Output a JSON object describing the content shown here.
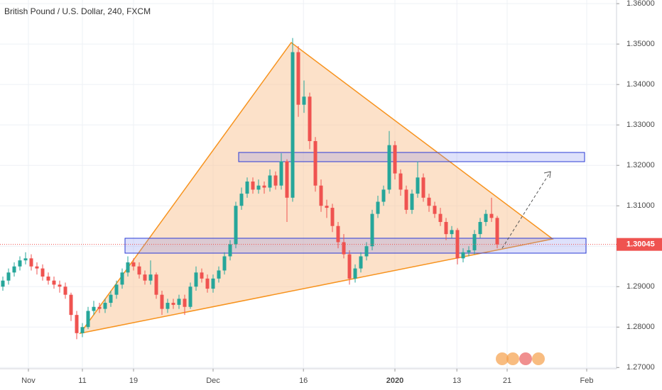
{
  "chart_data": {
    "type": "candlestick",
    "title": "British Pound / U.S. Dollar, 240, FXCM",
    "up_color": "#26a69a",
    "down_color": "#ef5350",
    "grid": true,
    "open": [
      1.29,
      1.2915,
      1.2935,
      1.295,
      1.2965,
      1.297,
      1.295,
      1.2945,
      1.2925,
      1.2915,
      1.2905,
      1.29,
      1.288,
      1.283,
      1.2785,
      1.28,
      1.284,
      1.285,
      1.2845,
      1.286,
      1.288,
      1.2905,
      1.2935,
      1.296,
      1.295,
      1.293,
      1.2915,
      1.293,
      1.288,
      1.2845,
      1.286,
      1.2855,
      1.287,
      1.285,
      1.29,
      1.2935,
      1.292,
      1.2895,
      1.292,
      1.294,
      1.2975,
      1.3005,
      1.31,
      1.313,
      1.316,
      1.314,
      1.315,
      1.3145,
      1.3175,
      1.315,
      1.321,
      1.312,
      1.348,
      1.335,
      1.337,
      1.326,
      1.315,
      1.31,
      1.3095,
      1.305,
      1.301,
      1.298,
      1.292,
      1.2945,
      1.2975,
      1.3,
      1.308,
      1.311,
      1.314,
      1.325,
      1.318,
      1.314,
      1.309,
      1.313,
      1.317,
      1.312,
      1.31,
      1.308,
      1.306,
      1.303,
      1.304,
      1.297,
      1.2985,
      1.299,
      1.303,
      1.306,
      1.308,
      1.307
    ],
    "high": [
      1.2925,
      1.2945,
      1.296,
      1.2975,
      1.2985,
      1.298,
      1.296,
      1.2955,
      1.2935,
      1.2925,
      1.2915,
      1.291,
      1.2885,
      1.284,
      1.281,
      1.285,
      1.2865,
      1.286,
      1.287,
      1.289,
      1.2915,
      1.2945,
      1.2975,
      1.297,
      1.296,
      1.294,
      1.2965,
      1.2935,
      1.289,
      1.287,
      1.287,
      1.288,
      1.288,
      1.291,
      1.295,
      1.2945,
      1.293,
      1.293,
      1.295,
      1.2985,
      1.3015,
      1.311,
      1.3145,
      1.317,
      1.317,
      1.3165,
      1.316,
      1.319,
      1.3185,
      1.323,
      1.3215,
      1.3515,
      1.3495,
      1.341,
      1.338,
      1.327,
      1.3165,
      1.3115,
      1.3105,
      1.306,
      1.303,
      1.299,
      1.2955,
      1.2985,
      1.301,
      1.309,
      1.3125,
      1.315,
      1.3285,
      1.326,
      1.319,
      1.315,
      1.314,
      1.321,
      1.318,
      1.313,
      1.311,
      1.3095,
      1.307,
      1.305,
      1.3045,
      1.2995,
      1.3,
      1.304,
      1.307,
      1.309,
      1.312,
      1.3075
    ],
    "low": [
      1.289,
      1.2905,
      1.2925,
      1.294,
      1.2955,
      1.294,
      1.293,
      1.2915,
      1.2905,
      1.2895,
      1.2885,
      1.287,
      1.2815,
      1.277,
      1.2775,
      1.2795,
      1.283,
      1.2835,
      1.2835,
      1.285,
      1.287,
      1.2895,
      1.2925,
      1.294,
      1.292,
      1.2905,
      1.2905,
      1.287,
      1.283,
      1.2835,
      1.2845,
      1.2845,
      1.283,
      1.2845,
      1.289,
      1.291,
      1.2885,
      1.2885,
      1.291,
      1.293,
      1.2965,
      1.2995,
      1.309,
      1.312,
      1.313,
      1.313,
      1.313,
      1.3135,
      1.314,
      1.314,
      1.306,
      1.311,
      1.332,
      1.333,
      1.324,
      1.3135,
      1.3085,
      1.307,
      1.3035,
      1.2995,
      1.297,
      1.2905,
      1.291,
      1.2935,
      1.2965,
      1.299,
      1.307,
      1.31,
      1.313,
      1.3165,
      1.3125,
      1.308,
      1.308,
      1.312,
      1.311,
      1.3085,
      1.307,
      1.305,
      1.3015,
      1.302,
      1.2955,
      1.296,
      1.2975,
      1.298,
      1.302,
      1.305,
      1.306,
      1.2995
    ],
    "close": [
      1.2915,
      1.2935,
      1.295,
      1.2965,
      1.297,
      1.295,
      1.2945,
      1.2925,
      1.2915,
      1.2905,
      1.29,
      1.288,
      1.283,
      1.2785,
      1.28,
      1.284,
      1.285,
      1.2845,
      1.286,
      1.288,
      1.2905,
      1.2935,
      1.296,
      1.295,
      1.293,
      1.2915,
      1.293,
      1.288,
      1.2845,
      1.286,
      1.2855,
      1.287,
      1.285,
      1.29,
      1.2935,
      1.292,
      1.2895,
      1.292,
      1.294,
      1.2975,
      1.3005,
      1.31,
      1.313,
      1.316,
      1.314,
      1.315,
      1.3145,
      1.3175,
      1.315,
      1.321,
      1.312,
      1.348,
      1.335,
      1.337,
      1.326,
      1.315,
      1.31,
      1.3095,
      1.305,
      1.301,
      1.298,
      1.292,
      1.2945,
      1.2975,
      1.3,
      1.308,
      1.311,
      1.314,
      1.325,
      1.318,
      1.314,
      1.309,
      1.313,
      1.317,
      1.312,
      1.31,
      1.308,
      1.306,
      1.303,
      1.304,
      1.297,
      1.2985,
      1.299,
      1.303,
      1.306,
      1.308,
      1.307,
      1.30045
    ],
    "last_price": 1.30045,
    "ylim": [
      1.2697,
      1.3609
    ],
    "yticks": [
      {
        "value": 1.27,
        "label": "1.27000"
      },
      {
        "value": 1.28,
        "label": "1.28000"
      },
      {
        "value": 1.29,
        "label": "1.29000"
      },
      {
        "value": 1.3,
        "label": "1.30000"
      },
      {
        "value": 1.31,
        "label": "1.31000"
      },
      {
        "value": 1.32,
        "label": "1.32000"
      },
      {
        "value": 1.33,
        "label": "1.33000"
      },
      {
        "value": 1.34,
        "label": "1.34000"
      },
      {
        "value": 1.35,
        "label": "1.35000"
      },
      {
        "value": 1.36,
        "label": "1.36000"
      }
    ],
    "xticks": [
      {
        "value": 4.5,
        "label": "Nov"
      },
      {
        "value": 14,
        "label": "11"
      },
      {
        "value": 23,
        "label": "19"
      },
      {
        "value": 37,
        "label": "Dec"
      },
      {
        "value": 52.9,
        "label": "16"
      },
      {
        "value": 69,
        "label": "2020"
      },
      {
        "value": 79.9,
        "label": "13"
      },
      {
        "value": 88.75,
        "label": "21"
      },
      {
        "value": 102.75,
        "label": "Feb"
      }
    ]
  }
}
